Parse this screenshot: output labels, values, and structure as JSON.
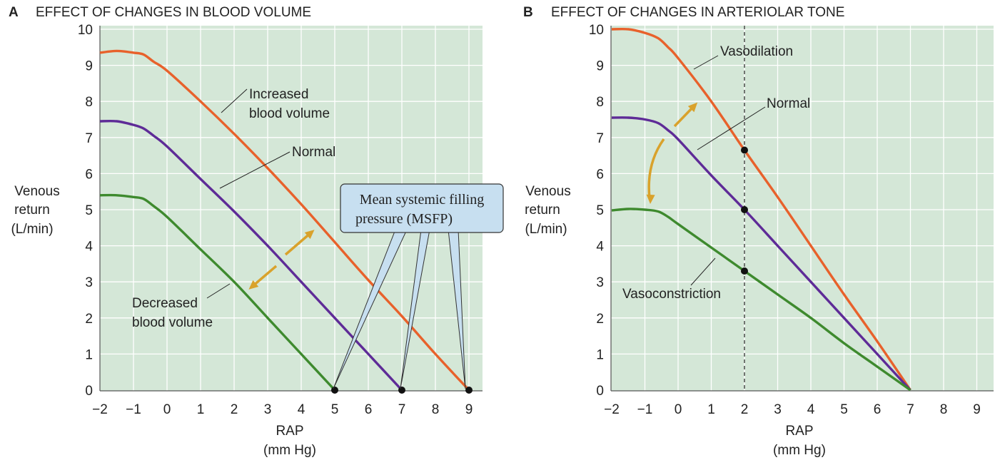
{
  "panels": [
    {
      "letter": "A",
      "title": "EFFECT OF CHANGES IN BLOOD VOLUME",
      "ylabel": [
        "Venous",
        "return",
        "(L/min)"
      ],
      "xlabel": [
        "RAP",
        "(mm Hg)"
      ],
      "xticks": [
        "−2",
        "−1",
        "0",
        "1",
        "2",
        "3",
        "4",
        "5",
        "6",
        "7",
        "8",
        "9"
      ],
      "yticks": [
        "0",
        "1",
        "2",
        "3",
        "4",
        "5",
        "6",
        "7",
        "8",
        "9",
        "10"
      ],
      "annotations": {
        "increased": [
          "Increased",
          "blood volume"
        ],
        "normal": [
          "Normal"
        ],
        "decreased": [
          "Decreased",
          "blood volume"
        ],
        "msfp": [
          "Mean systemic filling",
          "pressure (MSFP)"
        ]
      }
    },
    {
      "letter": "B",
      "title": "EFFECT OF CHANGES IN ARTERIOLAR TONE",
      "ylabel": [
        "Venous",
        "return",
        "(L/min)"
      ],
      "xlabel": [
        "RAP",
        "(mm Hg)"
      ],
      "xticks": [
        "−2",
        "−1",
        "0",
        "1",
        "2",
        "3",
        "4",
        "5",
        "6",
        "7",
        "8",
        "9"
      ],
      "yticks": [
        "0",
        "1",
        "2",
        "3",
        "4",
        "5",
        "6",
        "7",
        "8",
        "9",
        "10"
      ],
      "annotations": {
        "vasodilation": [
          "Vasodilation"
        ],
        "normal": [
          "Normal"
        ],
        "vasoconstriction": [
          "Vasoconstriction"
        ]
      }
    }
  ],
  "colors": {
    "background": "#d4e7d7",
    "grid": "#ffffff",
    "increased": "#e8612b",
    "normal": "#5e2b97",
    "decreased": "#3e8a2e",
    "arrow": "#d9a22c",
    "callout": "#c7dff0"
  },
  "chart_data": [
    {
      "type": "line",
      "title": "EFFECT OF CHANGES IN BLOOD VOLUME",
      "xlabel": "RAP (mm Hg)",
      "ylabel": "Venous return (L/min)",
      "xlim": [
        -2,
        9.5
      ],
      "ylim": [
        0,
        10
      ],
      "grid": true,
      "series": [
        {
          "name": "Increased blood volume",
          "color": "#e8612b",
          "points": [
            [
              -2,
              9.35
            ],
            [
              -1.5,
              9.4
            ],
            [
              -1,
              9.35
            ],
            [
              -0.7,
              9.3
            ],
            [
              -0.4,
              9.1
            ],
            [
              0,
              8.85
            ],
            [
              1,
              8.0
            ],
            [
              2,
              7.1
            ],
            [
              3,
              6.15
            ],
            [
              4,
              5.15
            ],
            [
              5,
              4.1
            ],
            [
              6,
              3.05
            ],
            [
              7,
              2.05
            ],
            [
              8,
              1.0
            ],
            [
              9,
              0
            ]
          ]
        },
        {
          "name": "Normal",
          "color": "#5e2b97",
          "points": [
            [
              -2,
              7.45
            ],
            [
              -1.5,
              7.45
            ],
            [
              -1,
              7.35
            ],
            [
              -0.7,
              7.25
            ],
            [
              -0.4,
              7.05
            ],
            [
              0,
              6.75
            ],
            [
              1,
              5.85
            ],
            [
              2,
              4.95
            ],
            [
              3,
              4.0
            ],
            [
              4,
              3.0
            ],
            [
              5,
              2.0
            ],
            [
              6,
              1.0
            ],
            [
              7,
              0
            ]
          ]
        },
        {
          "name": "Decreased blood volume",
          "color": "#3e8a2e",
          "points": [
            [
              -2,
              5.4
            ],
            [
              -1.5,
              5.4
            ],
            [
              -1,
              5.35
            ],
            [
              -0.7,
              5.3
            ],
            [
              -0.4,
              5.1
            ],
            [
              0,
              4.8
            ],
            [
              1,
              3.9
            ],
            [
              2,
              3.0
            ],
            [
              3,
              2.0
            ],
            [
              4,
              1.0
            ],
            [
              5,
              0
            ]
          ]
        }
      ],
      "points_marked": [
        [
          5,
          0
        ],
        [
          7,
          0
        ],
        [
          9,
          0
        ]
      ]
    },
    {
      "type": "line",
      "title": "EFFECT OF CHANGES IN ARTERIOLAR TONE",
      "xlabel": "RAP (mm Hg)",
      "ylabel": "Venous return (L/min)",
      "xlim": [
        -2,
        9.5
      ],
      "ylim": [
        0,
        10
      ],
      "grid": true,
      "reference_line_x": 2,
      "series": [
        {
          "name": "Vasodilation",
          "color": "#e8612b",
          "points": [
            [
              -2,
              10.0
            ],
            [
              -1.5,
              10.0
            ],
            [
              -1,
              9.9
            ],
            [
              -0.6,
              9.75
            ],
            [
              -0.3,
              9.5
            ],
            [
              0,
              9.2
            ],
            [
              1,
              8.0
            ],
            [
              2,
              6.65
            ],
            [
              3,
              5.35
            ],
            [
              4,
              4.0
            ],
            [
              5,
              2.65
            ],
            [
              6,
              1.35
            ],
            [
              7,
              0
            ]
          ]
        },
        {
          "name": "Normal",
          "color": "#5e2b97",
          "points": [
            [
              -2,
              7.55
            ],
            [
              -1.5,
              7.55
            ],
            [
              -1,
              7.5
            ],
            [
              -0.6,
              7.4
            ],
            [
              -0.3,
              7.2
            ],
            [
              0,
              6.95
            ],
            [
              1,
              5.95
            ],
            [
              2,
              5.0
            ],
            [
              3,
              4.0
            ],
            [
              4,
              3.0
            ],
            [
              5,
              2.0
            ],
            [
              6,
              1.0
            ],
            [
              7,
              0
            ]
          ]
        },
        {
          "name": "Vasoconstriction",
          "color": "#3e8a2e",
          "points": [
            [
              -2,
              4.98
            ],
            [
              -1.5,
              5.02
            ],
            [
              -1,
              5.0
            ],
            [
              -0.6,
              4.95
            ],
            [
              -0.3,
              4.8
            ],
            [
              0,
              4.6
            ],
            [
              1,
              3.95
            ],
            [
              2,
              3.3
            ],
            [
              3,
              2.65
            ],
            [
              4,
              2.0
            ],
            [
              5,
              1.3
            ],
            [
              6,
              0.65
            ],
            [
              7,
              0
            ]
          ]
        }
      ],
      "points_marked": [
        [
          2,
          6.65
        ],
        [
          2,
          5.0
        ],
        [
          2,
          3.3
        ]
      ]
    }
  ]
}
